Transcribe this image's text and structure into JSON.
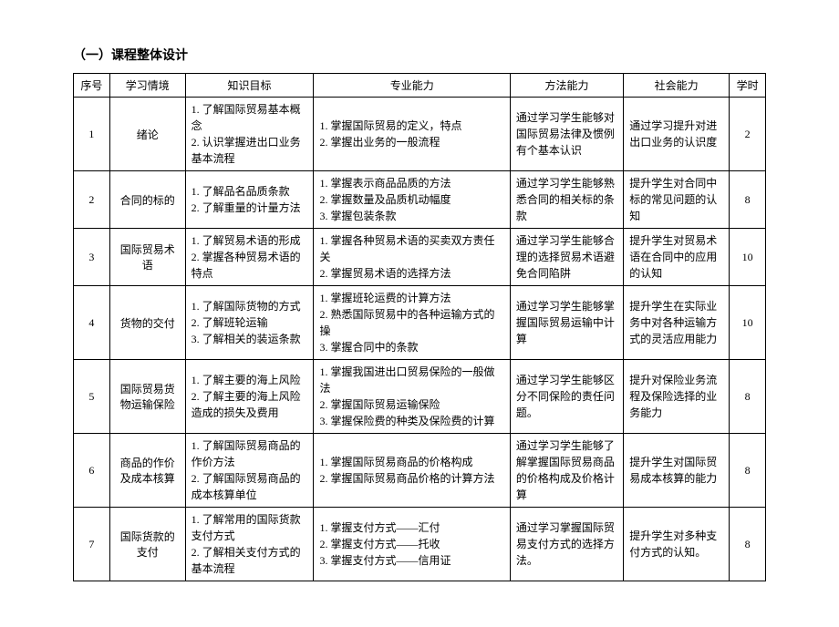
{
  "title": "（一）课程整体设计",
  "headers": {
    "seq": "序号",
    "context": "学习情境",
    "knowledge": "知识目标",
    "professional": "专业能力",
    "method": "方法能力",
    "social": "社会能力",
    "hours": "学时"
  },
  "rows": [
    {
      "seq": "1",
      "context": "绪论",
      "knowledge": "1. 了解国际贸易基本概念\n2. 认识掌握进出口业务基本流程",
      "professional": "1. 掌握国际贸易的定义，特点\n2. 掌握出业务的一般流程",
      "method": "通过学习学生能够对国际贸易法律及惯例有个基本认识",
      "social": "通过学习提升对进出口业务的认识度",
      "hours": "2"
    },
    {
      "seq": "2",
      "context": "合同的标的",
      "knowledge": "1. 了解品名品质条款\n2. 了解重量的计量方法",
      "professional": "1. 掌握表示商品品质的方法\n2. 掌握数量及品质机动幅度\n3. 掌握包装条款",
      "method": "通过学习学生能够熟悉合同的相关标的条款",
      "social": "提升学生对合同中标的常见问题的认知",
      "hours": "8"
    },
    {
      "seq": "3",
      "context": "国际贸易术语",
      "knowledge": "1. 了解贸易术语的形成\n2. 掌握各种贸易术语的特点",
      "professional": "1. 掌握各种贸易术语的买卖双方责任关\n2. 掌握贸易术语的选择方法",
      "method": "通过学习学生能够合理的选择贸易术语避免合同陷阱",
      "social": "提升学生对贸易术语在合同中的应用的认知",
      "hours": "10"
    },
    {
      "seq": "4",
      "context": "货物的交付",
      "knowledge": "1. 了解国际货物的方式\n2. 了解班轮运输\n3. 了解相关的装运条款",
      "professional": "1. 掌握班轮运费的计算方法\n2. 熟悉国际贸易中的各种运输方式的操\n3. 掌握合同中的条款",
      "method": "通过学习学生能够掌握国际贸易运输中计算",
      "social": "提升学生在实际业务中对各种运输方式的灵活应用能力",
      "hours": "10"
    },
    {
      "seq": "5",
      "context": "国际贸易货物运输保险",
      "knowledge": "1. 了解主要的海上风险\n2. 了解主要的海上风险造成的损失及费用",
      "professional": "1. 掌握我国进出口贸易保险的一般做法\n2. 掌握国际贸易运输保险\n3. 掌握保险费的种类及保险费的计算",
      "method": "通过学习学生能够区分不同保险的责任问题。",
      "social": "提升对保险业务流程及保险选择的业务能力",
      "hours": "8"
    },
    {
      "seq": "6",
      "context": "商品的作价及成本核算",
      "knowledge": "1. 了解国际贸易商品的作价方法\n2.   了解国际贸易商品的成本核算单位",
      "professional": "1. 掌握国际贸易商品的价格构成\n2. 掌握国际贸易商品价格的计算方法",
      "method": "通过学习学生能够了解掌握国际贸易商品的价格构成及价格计算",
      "social": "提升学生对国际贸易成本核算的能力",
      "hours": "8"
    },
    {
      "seq": "7",
      "context": "国际货款的支付",
      "knowledge": "1. 了解常用的国际货款支付方式\n2. 了解相关支付方式的基本流程",
      "professional": "1.  掌握支付方式——汇付\n2.  掌握支付方式——托收\n3.  掌握支付方式——信用证",
      "method": "通过学习掌握国际贸易支付方式的选择方法。",
      "social": "提升学生对多种支付方式的认知。",
      "hours": "8"
    }
  ]
}
